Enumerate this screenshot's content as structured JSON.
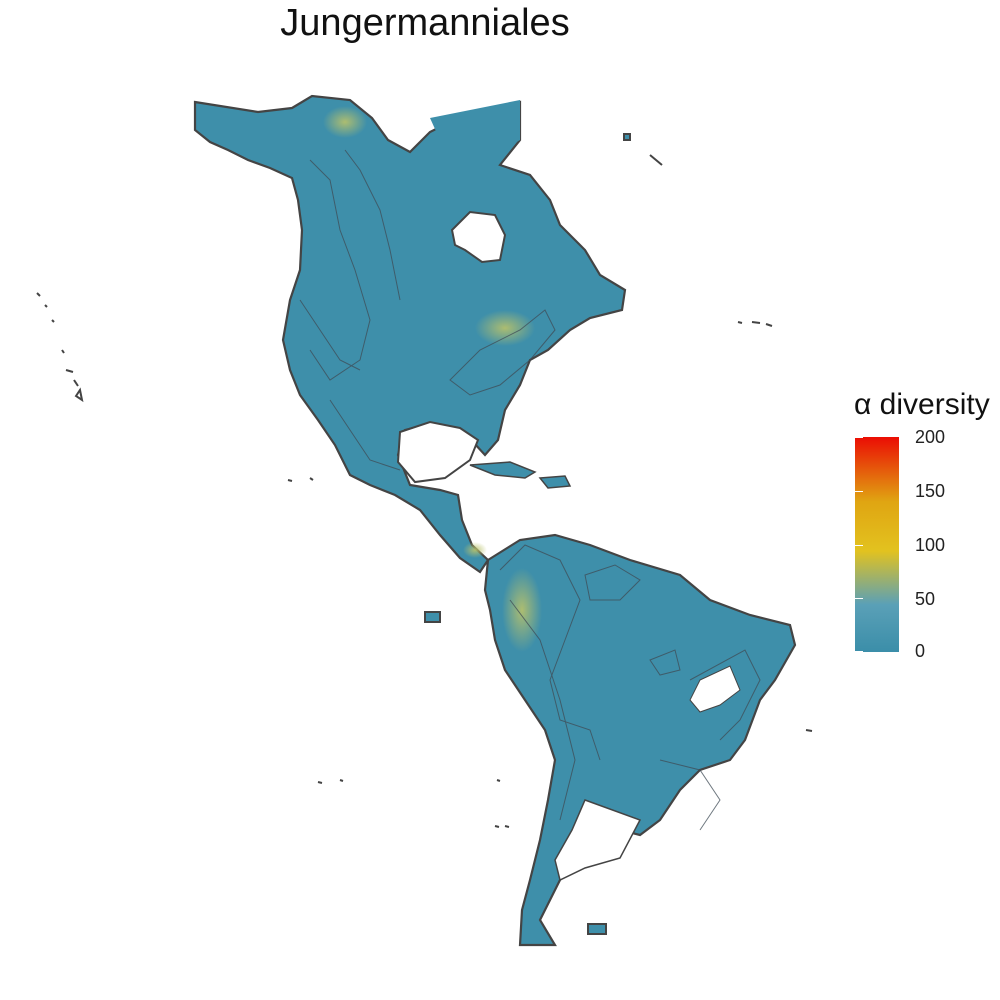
{
  "title": "Jungermanniales",
  "legend": {
    "title": "α diversity",
    "ticks": [
      "200",
      "150",
      "100",
      "50",
      "0"
    ],
    "range": [
      0,
      200
    ],
    "colors": {
      "low": "#3b8ea9",
      "mid_low": "#5aa0b7",
      "mid": "#e2c21f",
      "mid_high": "#e0a512",
      "high": "#eb0d04"
    }
  },
  "map": {
    "region": "Americas",
    "land_fill": "#3e8faa",
    "border_color": "#444444",
    "hotspot_color": "#9fb86a"
  }
}
